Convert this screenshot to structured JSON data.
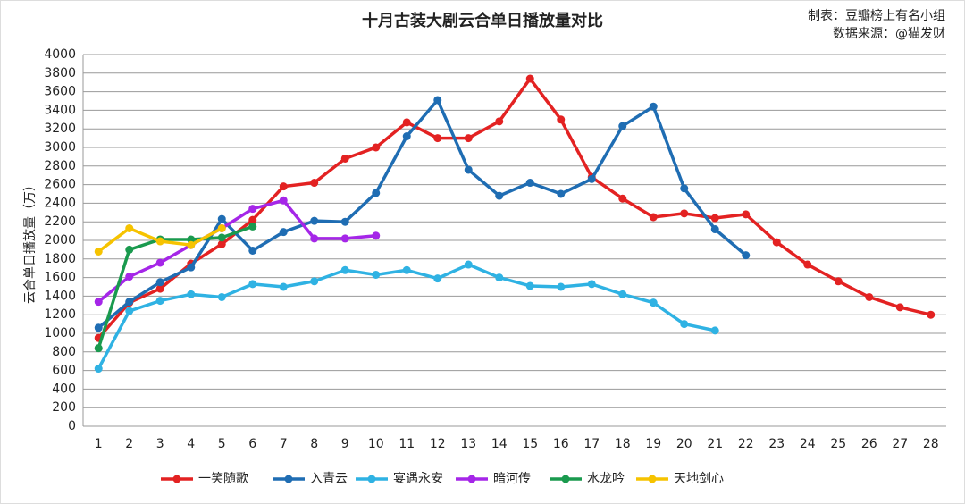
{
  "chart_data": {
    "type": "line",
    "title": "十月古装大剧云合单日播放量对比",
    "annotations": [
      "制表：豆瓣榜上有名小组",
      "数据来源：@猫发财"
    ],
    "y_label": "云合单日播放量（万）",
    "categories": [
      "1",
      "2",
      "3",
      "4",
      "5",
      "6",
      "7",
      "8",
      "9",
      "10",
      "11",
      "12",
      "13",
      "14",
      "15",
      "16",
      "17",
      "18",
      "19",
      "20",
      "21",
      "22",
      "23",
      "24",
      "25",
      "26",
      "27",
      "28"
    ],
    "ylim": [
      0,
      4000
    ],
    "yticks": [
      0,
      200,
      400,
      600,
      800,
      1000,
      1200,
      1400,
      1600,
      1800,
      2000,
      2200,
      2400,
      2600,
      2800,
      3000,
      3200,
      3400,
      3600,
      3800,
      4000
    ],
    "grid": true,
    "legend": "bottom",
    "series": [
      {
        "name": "一笑随歌",
        "color": "#e32222",
        "values": [
          950,
          1330,
          1480,
          1750,
          1960,
          2220,
          2580,
          2620,
          2880,
          3000,
          3270,
          3100,
          3100,
          3280,
          3740,
          3300,
          2680,
          2450,
          2250,
          2290,
          2240,
          2280,
          1980,
          1740,
          1560,
          1390,
          1280,
          1200
        ]
      },
      {
        "name": "入青云",
        "color": "#1f6db3",
        "values": [
          1060,
          1340,
          1550,
          1710,
          2230,
          1890,
          2090,
          2210,
          2200,
          2510,
          3120,
          3510,
          2760,
          2480,
          2620,
          2500,
          2660,
          3230,
          3440,
          2560,
          2120,
          1840,
          null,
          null,
          null,
          null,
          null,
          null
        ]
      },
      {
        "name": "宴遇永安",
        "color": "#2fb2e3",
        "values": [
          620,
          1240,
          1350,
          1420,
          1390,
          1530,
          1500,
          1560,
          1680,
          1630,
          1680,
          1590,
          1740,
          1600,
          1510,
          1500,
          1530,
          1420,
          1330,
          1100,
          1030,
          null,
          null,
          null,
          null,
          null,
          null,
          null
        ]
      },
      {
        "name": "暗河传",
        "color": "#a526e8",
        "values": [
          1340,
          1610,
          1760,
          1950,
          2130,
          2340,
          2430,
          2020,
          2020,
          2050,
          null,
          null,
          null,
          null,
          null,
          null,
          null,
          null,
          null,
          null,
          null,
          null,
          null,
          null,
          null,
          null,
          null,
          null
        ]
      },
      {
        "name": "水龙吟",
        "color": "#1a9a4e",
        "values": [
          840,
          1900,
          2010,
          2010,
          2030,
          2150,
          null,
          null,
          null,
          null,
          null,
          null,
          null,
          null,
          null,
          null,
          null,
          null,
          null,
          null,
          null,
          null,
          null,
          null,
          null,
          null,
          null,
          null
        ]
      },
      {
        "name": "天地剑心",
        "color": "#f6c300",
        "values": [
          1880,
          2130,
          1990,
          1950,
          2130,
          null,
          null,
          null,
          null,
          null,
          null,
          null,
          null,
          null,
          null,
          null,
          null,
          null,
          null,
          null,
          null,
          null,
          null,
          null,
          null,
          null,
          null,
          null
        ]
      }
    ]
  }
}
